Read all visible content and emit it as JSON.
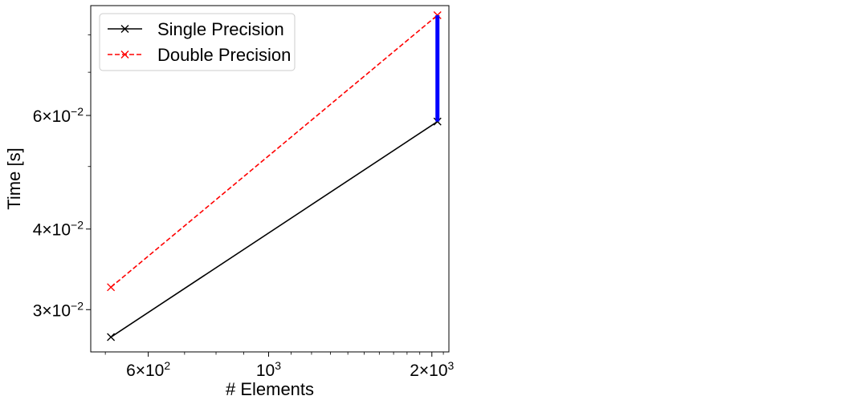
{
  "chart_data": {
    "type": "line",
    "xscale": "log",
    "yscale": "log",
    "xlabel": "# Elements",
    "ylabel": "Time [s]",
    "xlim": [
      470,
      2150
    ],
    "ylim": [
      0.0258,
      0.0888
    ],
    "x_ticks": [
      {
        "value": 600,
        "mantissa": "6",
        "exponent": "2"
      },
      {
        "value": 1000,
        "mantissa": "",
        "exponent": "3"
      },
      {
        "value": 2000,
        "mantissa": "2",
        "exponent": "3"
      }
    ],
    "y_ticks": [
      {
        "value": 0.03,
        "mantissa": "3",
        "exponent": "−2"
      },
      {
        "value": 0.04,
        "mantissa": "4",
        "exponent": "−2"
      },
      {
        "value": 0.06,
        "mantissa": "6",
        "exponent": "−2"
      }
    ],
    "series": [
      {
        "name": "Single Precision",
        "color": "#000000",
        "dash": "solid",
        "marker": "x",
        "x": [
          512,
          2048
        ],
        "y": [
          0.0272,
          0.0587
        ]
      },
      {
        "name": "Double Precision",
        "color": "#ff0000",
        "dash": "dashed",
        "marker": "x",
        "x": [
          512,
          2048
        ],
        "y": [
          0.0325,
          0.0858
        ]
      }
    ],
    "annotations": [
      {
        "type": "vertical-segment",
        "color": "#0000ff",
        "x": 2048,
        "y_from": 0.0587,
        "y_to": 0.0858
      }
    ],
    "legend": {
      "position": "top-left"
    },
    "grid": false
  }
}
